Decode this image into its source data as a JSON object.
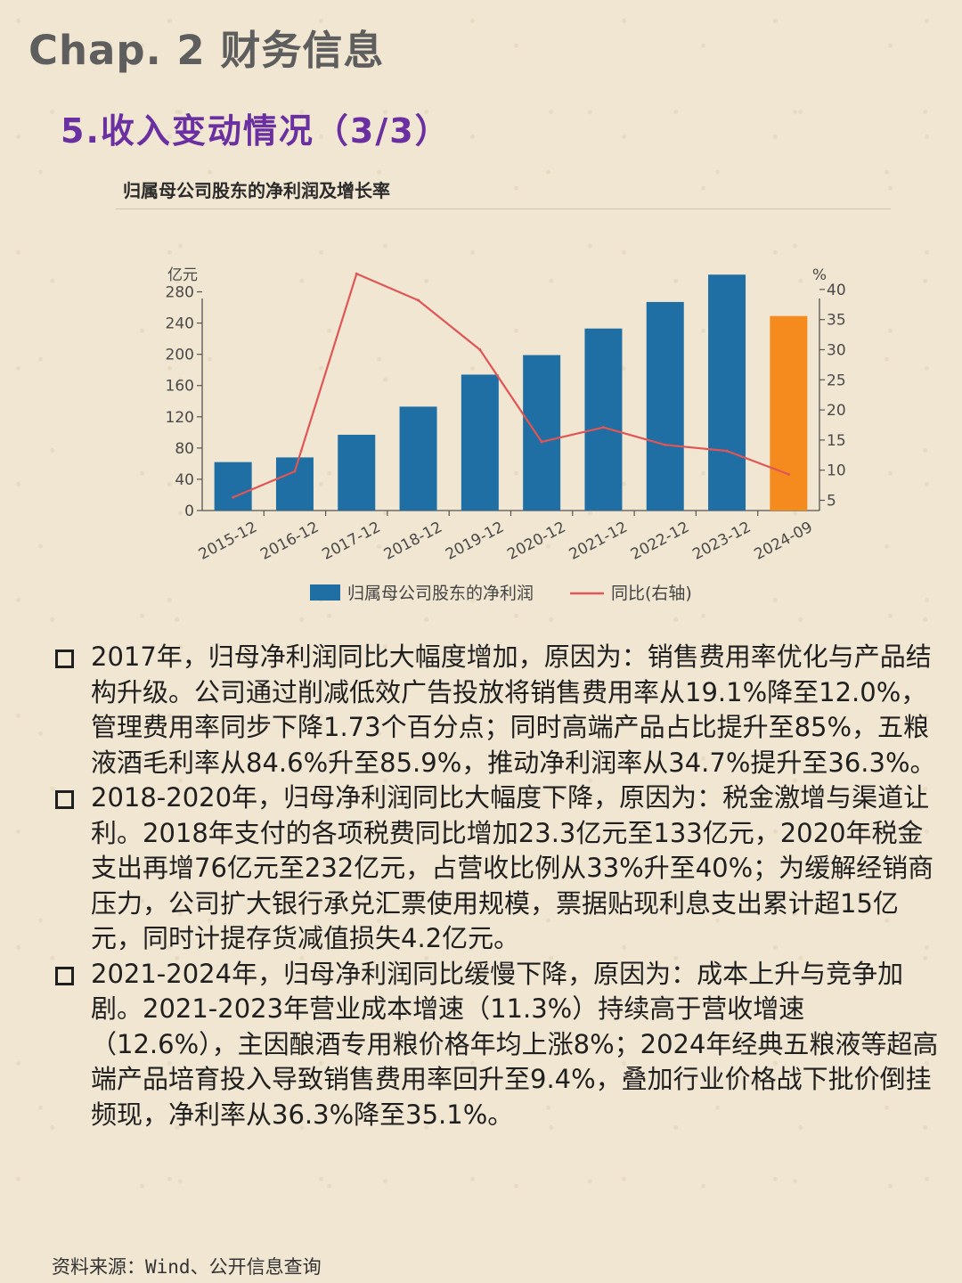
{
  "header": {
    "chapter": "Chap. 2 财务信息",
    "section": "5.收入变动情况（3/3）"
  },
  "chart_data": {
    "type": "bar",
    "title": "归属母公司股东的净利润及增长率",
    "y_left_unit": "亿元",
    "y_right_unit": "%",
    "categories": [
      "2015-12",
      "2016-12",
      "2017-12",
      "2018-12",
      "2019-12",
      "2020-12",
      "2021-12",
      "2022-12",
      "2023-12",
      "2024-09"
    ],
    "left_ticks": [
      0,
      40,
      80,
      120,
      160,
      200,
      240,
      280
    ],
    "right_ticks": [
      5,
      10,
      15,
      20,
      25,
      30,
      35,
      40
    ],
    "ylim_left": [
      0,
      300
    ],
    "ylim_right": [
      3.3,
      42.2
    ],
    "series": [
      {
        "name": "归属母公司股东的净利润",
        "type": "bar",
        "axis": "left",
        "values": [
          62,
          68,
          97,
          133,
          174,
          199,
          233,
          267,
          302,
          249
        ],
        "color": "#1f6fa5",
        "highlight_color": "#f58a1f",
        "highlight_index": 9
      },
      {
        "name": "同比(右轴)",
        "type": "line",
        "axis": "right",
        "values": [
          5.5,
          9.8,
          42.6,
          38.2,
          30.0,
          14.7,
          17.1,
          14.2,
          13.2,
          9.3
        ],
        "color": "#e05555"
      }
    ],
    "legend_position": "bottom",
    "grid": false
  },
  "bullets": [
    "2017年，归母净利润同比大幅度增加，原因为：销售费用率优化与产品结构升级。公司通过削减低效广告投放将销售费用率从19.1%降至12.0%，管理费用率同步下降1.73个百分点；同时高端产品占比提升至85%，五粮液酒毛利率从84.6%升至85.9%，推动净利润率从34.7%提升至36.3%。",
    "2018-2020年，归母净利润同比大幅度下降，原因为：税金激增与渠道让利。2018年支付的各项税费同比增加23.3亿元至133亿元，2020年税金支出再增76亿元至232亿元，占营收比例从33%升至40%；为缓解经销商压力，公司扩大银行承兑汇票使用规模，票据贴现利息支出累计超15亿元，同时计提存货减值损失4.2亿元。",
    "2021-2024年，归母净利润同比缓慢下降，原因为：成本上升与竞争加剧。2021-2023年营业成本增速（11.3%）持续高于营收增速（12.6%），主因酿酒专用粮价格年均上涨8%；2024年经典五粮液等超高端产品培育投入导致销售费用率回升至9.4%，叠加行业价格战下批价倒挂频现，净利率从36.3%降至35.1%。"
  ],
  "footer": {
    "source": "资料来源：Wind、公开信息查询"
  }
}
